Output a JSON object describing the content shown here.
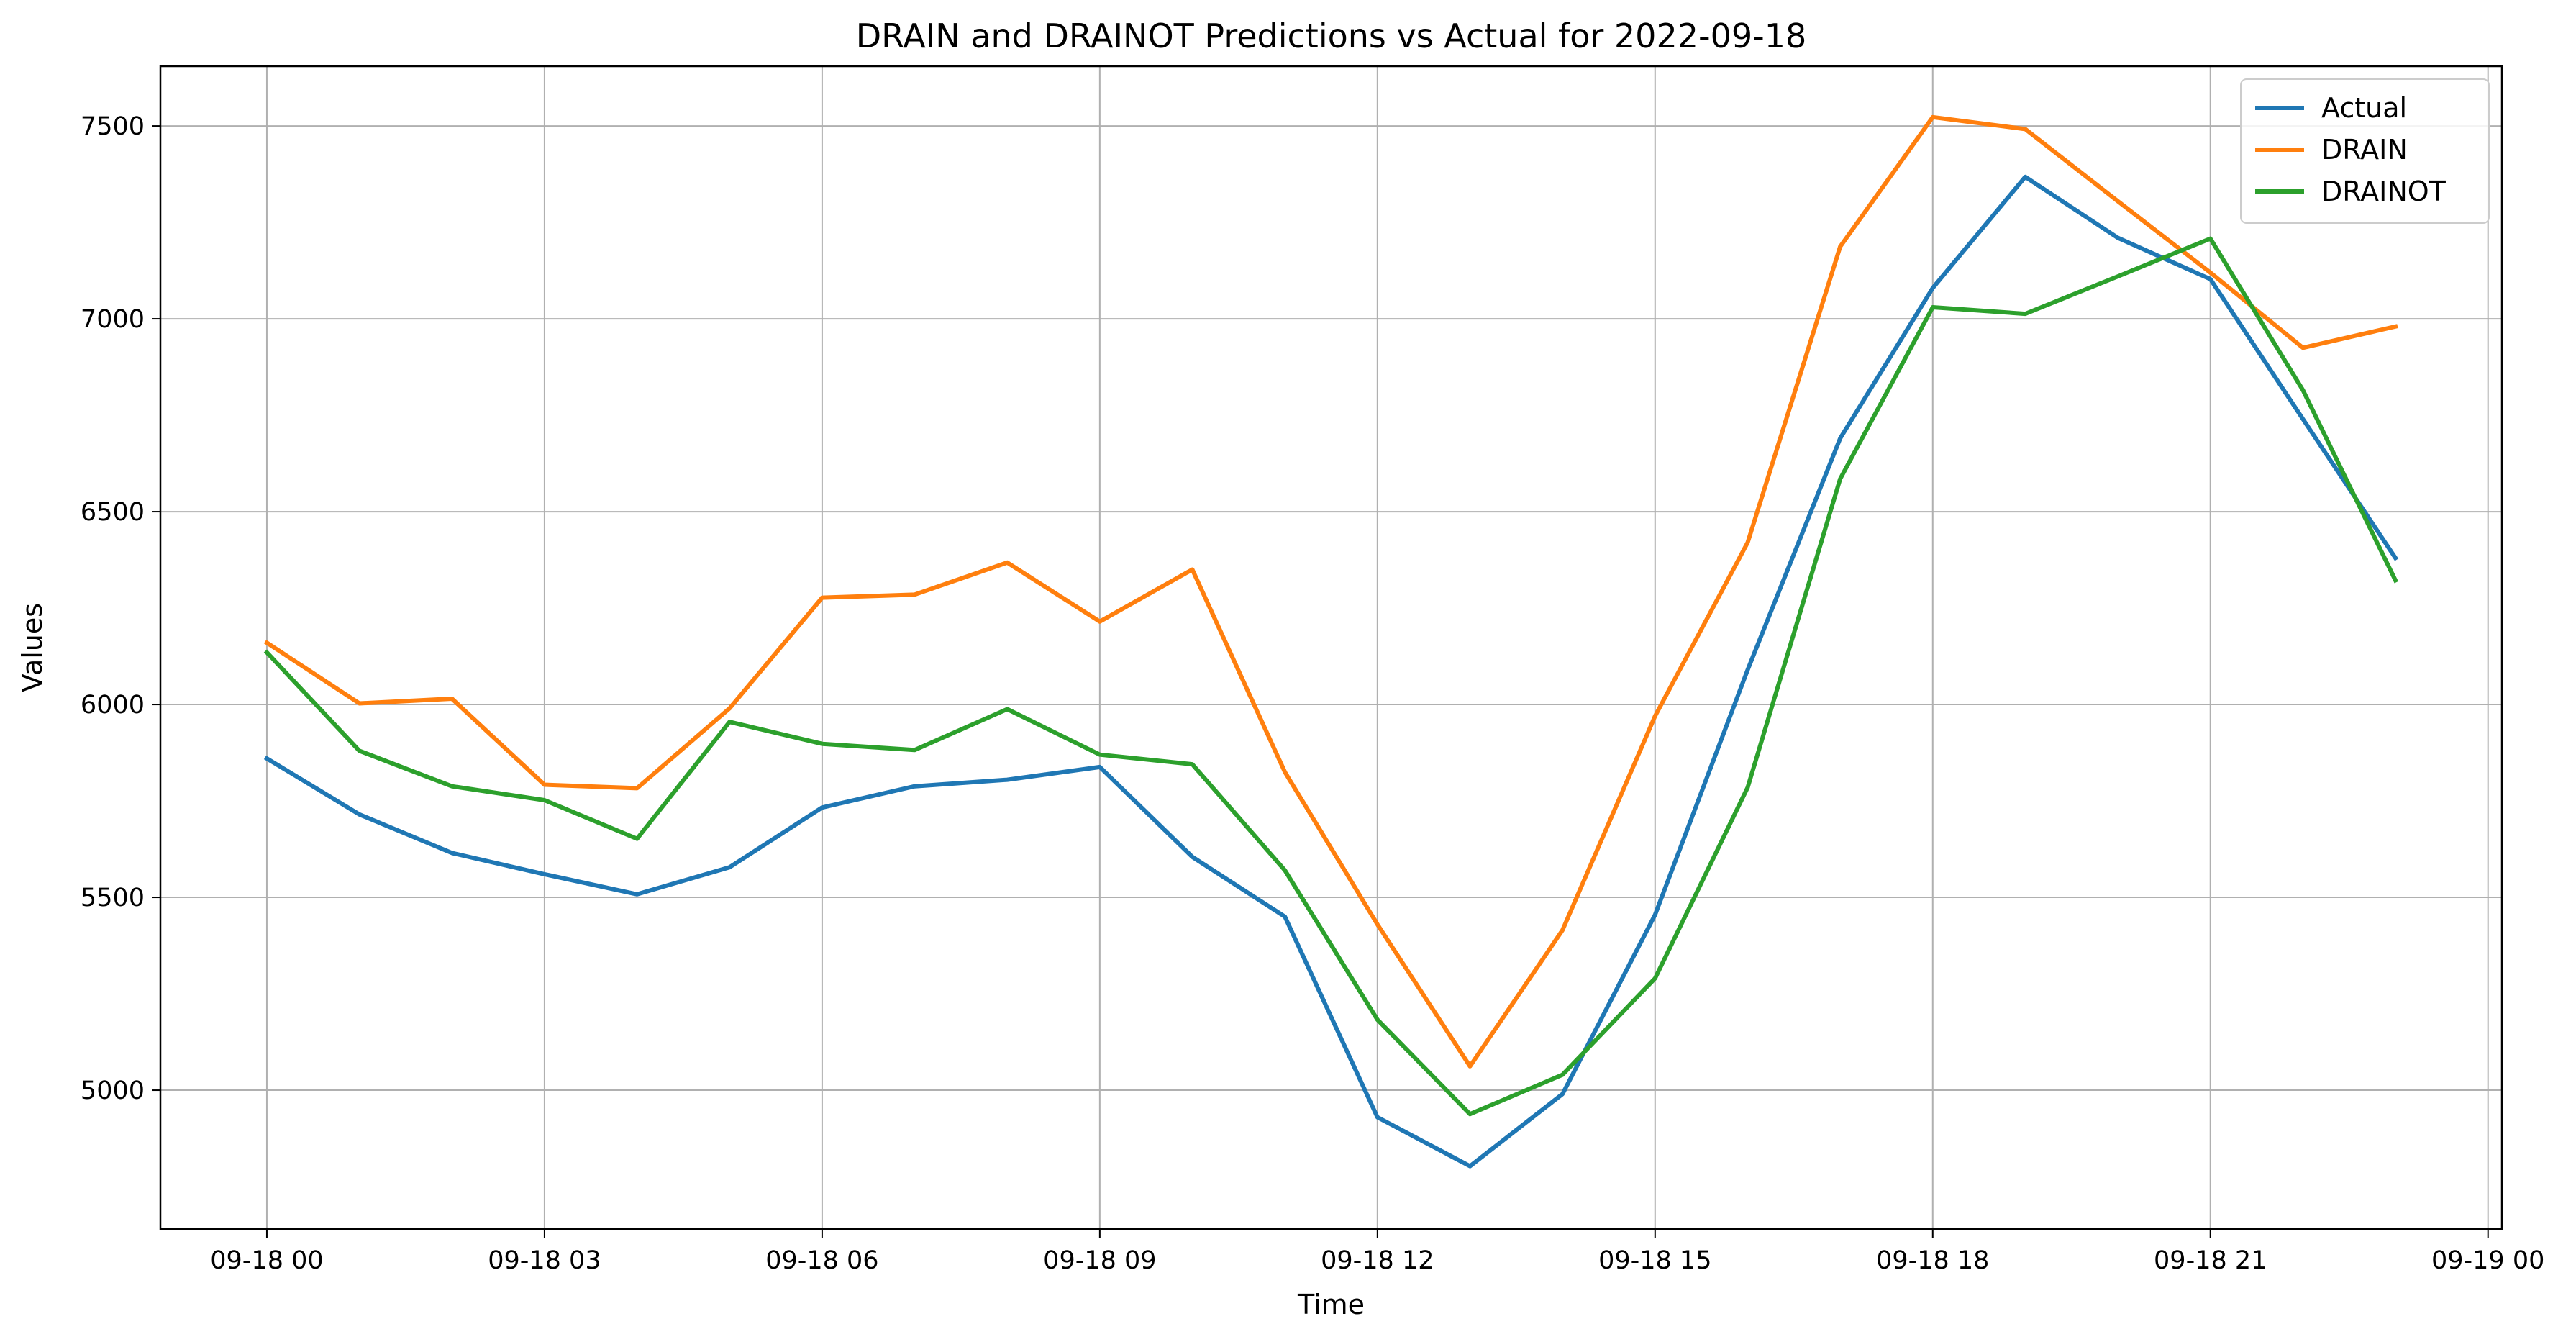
{
  "chart_data": {
    "type": "line",
    "title": "DRAIN and DRAINOT Predictions vs Actual for 2022-09-18",
    "xlabel": "Time",
    "ylabel": "Values",
    "x": [
      "2022-09-18 00:00",
      "2022-09-18 01:00",
      "2022-09-18 02:00",
      "2022-09-18 03:00",
      "2022-09-18 04:00",
      "2022-09-18 05:00",
      "2022-09-18 06:00",
      "2022-09-18 07:00",
      "2022-09-18 08:00",
      "2022-09-18 09:00",
      "2022-09-18 10:00",
      "2022-09-18 11:00",
      "2022-09-18 12:00",
      "2022-09-18 13:00",
      "2022-09-18 14:00",
      "2022-09-18 15:00",
      "2022-09-18 16:00",
      "2022-09-18 17:00",
      "2022-09-18 18:00",
      "2022-09-18 19:00",
      "2022-09-18 20:00",
      "2022-09-18 21:00",
      "2022-09-18 22:00",
      "2022-09-18 23:00"
    ],
    "x_ticks": [
      "09-18 00",
      "09-18 03",
      "09-18 06",
      "09-18 09",
      "09-18 12",
      "09-18 15",
      "09-18 18",
      "09-18 21",
      "09-19 00"
    ],
    "x_tick_values": [
      "2022-09-18 00:00",
      "2022-09-18 03:00",
      "2022-09-18 06:00",
      "2022-09-18 09:00",
      "2022-09-18 12:00",
      "2022-09-18 15:00",
      "2022-09-18 18:00",
      "2022-09-18 21:00",
      "2022-09-19 00:00"
    ],
    "xlim": [
      "2022-09-17 22:51",
      "2022-09-19 00:09"
    ],
    "y_ticks": [
      5000,
      5500,
      6000,
      6500,
      7000,
      7500
    ],
    "ylim": [
      4640,
      7655
    ],
    "grid": true,
    "legend_position": "top-right",
    "series": [
      {
        "name": "Actual",
        "color": "#1f77b4",
        "values": [
          5860,
          5715,
          5615,
          5560,
          5508,
          5578,
          5733,
          5788,
          5805,
          5838,
          5605,
          5450,
          4930,
          4803,
          4990,
          5455,
          6090,
          6690,
          7080,
          7368,
          7210,
          7103,
          6740,
          6380
        ]
      },
      {
        "name": "DRAIN",
        "color": "#ff7f0e",
        "values": [
          6160,
          6003,
          6015,
          5792,
          5783,
          5990,
          6277,
          6285,
          6368,
          6215,
          6350,
          5825,
          5430,
          5062,
          5415,
          5970,
          6420,
          7187,
          7523,
          7492,
          7305,
          7120,
          6925,
          6980
        ]
      },
      {
        "name": "DRAINOT",
        "color": "#2ca02c",
        "values": [
          6135,
          5880,
          5788,
          5752,
          5652,
          5955,
          5898,
          5882,
          5988,
          5870,
          5845,
          5570,
          5183,
          4938,
          5040,
          5290,
          5785,
          6585,
          7030,
          7013,
          7110,
          7208,
          6815,
          6322
        ]
      }
    ]
  }
}
